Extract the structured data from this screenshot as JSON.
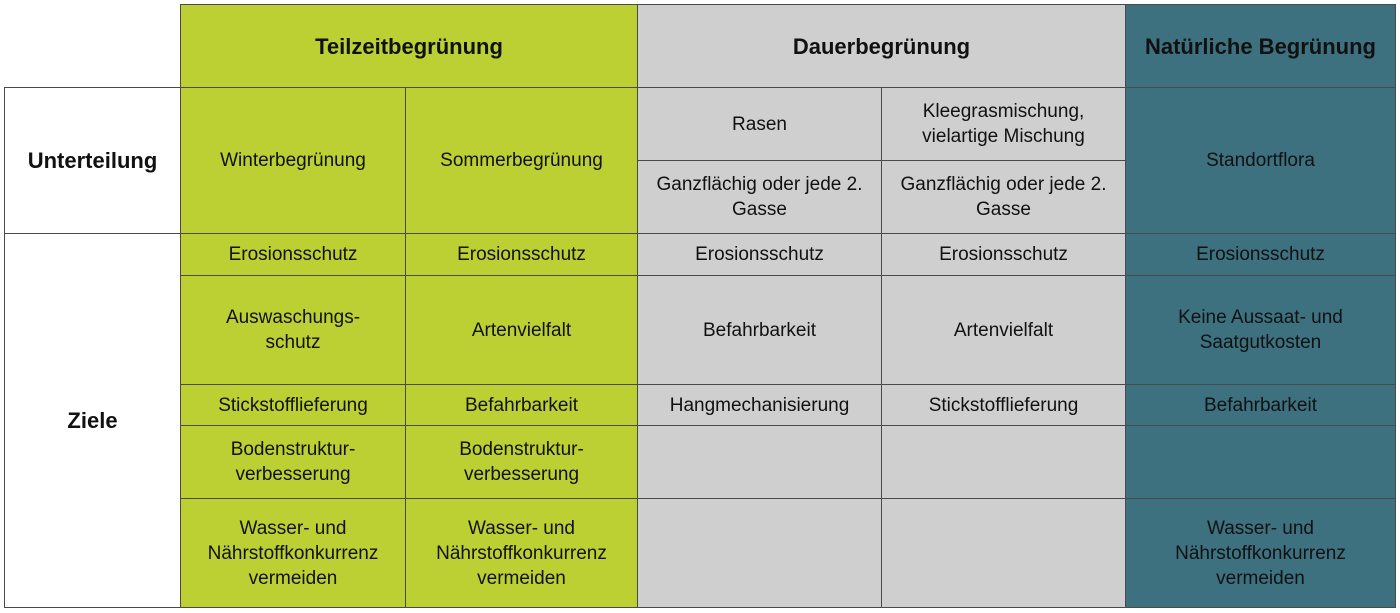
{
  "colors": {
    "teilzeit": "#bdd033",
    "dauer": "#cfcfcf",
    "natuerlich": "#3d7180"
  },
  "header": {
    "teilzeit": "Teilzeitbegrünung",
    "dauer": "Dauerbegrünung",
    "natuerlich": "Natürliche Begrünung"
  },
  "unterteilung": {
    "label": "Unterteilung",
    "winter": "Winterbegrünung",
    "sommer": "Sommerbegrünung",
    "rasen": "Rasen",
    "klee": "Kleegrasmischung, vielartige Mischung",
    "rasen_sub": "Ganzflächig oder jede 2. Gasse",
    "klee_sub": "Ganzflächig oder jede 2. Gasse",
    "natuerlich": "Standortflora"
  },
  "ziele": {
    "label": "Ziele",
    "rows": [
      [
        "Erosionsschutz",
        "Erosionsschutz",
        "Erosionsschutz",
        "Erosionsschutz",
        "Erosionsschutz"
      ],
      [
        "Auswaschungs-schutz",
        "Artenvielfalt",
        "Befahrbarkeit",
        "Artenvielfalt",
        "Keine Aussaat- und Saatgutkosten"
      ],
      [
        "Stickstofflieferung",
        "Befahrbarkeit",
        "Hangmechanisierung",
        "Stickstofflieferung",
        "Befahrbarkeit"
      ],
      [
        "Bodenstruktur-verbesserung",
        "Bodenstruktur-verbesserung",
        "",
        "",
        ""
      ],
      [
        "Wasser- und Nährstoffkonkurrenz vermeiden",
        "Wasser- und Nährstoffkonkurrenz vermeiden",
        "",
        "",
        "Wasser- und Nährstoffkonkurrenz vermeiden"
      ]
    ]
  }
}
